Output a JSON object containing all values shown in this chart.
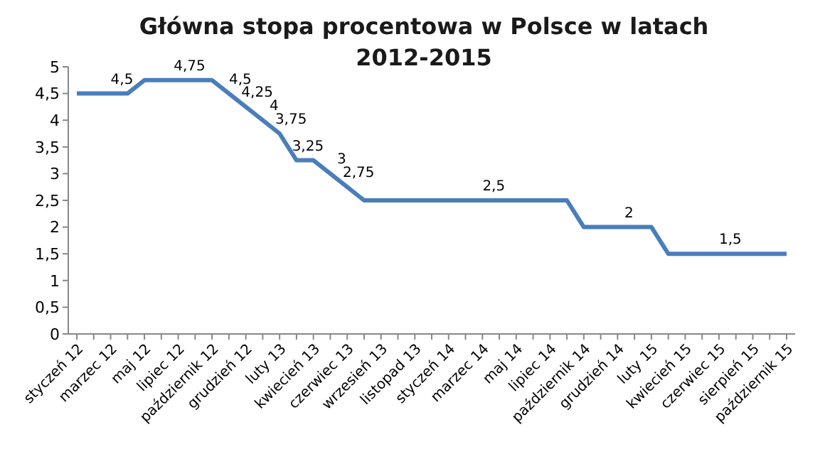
{
  "chart_data": {
    "type": "line",
    "title": "Główna stopa procentowa w Polsce w latach 2012-2015",
    "categories": [
      "styczeń 12",
      null,
      "marzec 12",
      null,
      "maj 12",
      null,
      "lipiec 12",
      null,
      "październik 12",
      null,
      "grudzień 12",
      null,
      "luty 13",
      null,
      "kwiecień 13",
      null,
      "czerwiec 13",
      null,
      "wrzesień 13",
      null,
      "listopad 13",
      null,
      "styczeń 14",
      null,
      "marzec 14",
      null,
      "maj 14",
      null,
      "lipiec 14",
      null,
      "październik 14",
      null,
      "grudzień 14",
      null,
      "luty 15",
      null,
      "kwiecień 15",
      null,
      "czerwiec 15",
      null,
      "sierpień 15",
      null,
      "październik 15"
    ],
    "series": [
      {
        "color": "#4a7ebb",
        "values": [
          4.5,
          4.5,
          4.5,
          4.5,
          4.75,
          4.75,
          4.75,
          4.75,
          4.75,
          4.5,
          4.25,
          4,
          3.75,
          3.25,
          3.25,
          3,
          2.75,
          2.5,
          2.5,
          2.5,
          2.5,
          2.5,
          2.5,
          2.5,
          2.5,
          2.5,
          2.5,
          2.5,
          2.5,
          2.5,
          2,
          2,
          2,
          2,
          2,
          1.5,
          1.5,
          1.5,
          1.5,
          1.5,
          1.5,
          1.5,
          1.5
        ],
        "value_labels": [
          null,
          null,
          "4,5",
          null,
          null,
          null,
          "4,75",
          null,
          null,
          "4,5",
          "4,25",
          "4",
          "3,75",
          "3,25",
          null,
          "3",
          "2,75",
          null,
          null,
          null,
          null,
          null,
          null,
          null,
          "2,5",
          null,
          null,
          null,
          null,
          null,
          null,
          null,
          "2",
          null,
          null,
          null,
          null,
          null,
          "1,5",
          null,
          null,
          null,
          null
        ]
      }
    ],
    "ylim": [
      0,
      5
    ],
    "yticks": [
      0,
      {
        "value": 0.5,
        "label": "0,5"
      },
      1,
      {
        "value": 1.5,
        "label": "1,5"
      },
      2,
      {
        "value": 2.5,
        "label": "2,5"
      },
      3,
      {
        "value": 3.5,
        "label": "3,5"
      },
      4,
      {
        "value": 4.5,
        "label": "4,5"
      },
      5
    ],
    "grid": false,
    "legend": false,
    "marker": "none",
    "line_style": "solid"
  }
}
